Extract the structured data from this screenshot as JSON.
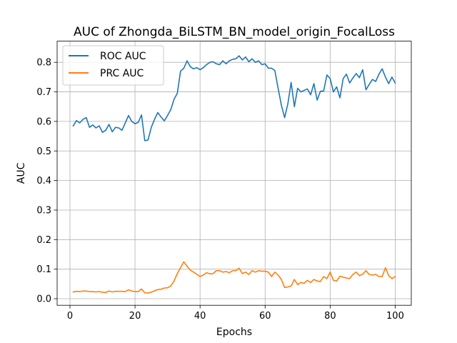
{
  "chart_data": {
    "type": "line",
    "title": "AUC of Zhongda_BiLSTM_BN_model_origin_FocalLoss",
    "xlabel": "Epochs",
    "ylabel": "AUC",
    "xlim": [
      -3.95,
      104.95
    ],
    "ylim": [
      -0.0222,
      0.8716
    ],
    "xticks": [
      0,
      20,
      40,
      60,
      80,
      100
    ],
    "xtick_labels": [
      "0",
      "20",
      "40",
      "60",
      "80",
      "100"
    ],
    "yticks": [
      0.0,
      0.1,
      0.2,
      0.3,
      0.4,
      0.5,
      0.6,
      0.7,
      0.8
    ],
    "ytick_labels": [
      "0.0",
      "0.1",
      "0.2",
      "0.3",
      "0.4",
      "0.5",
      "0.6",
      "0.7",
      "0.8"
    ],
    "grid": true,
    "legend": "upper left",
    "x": [
      1,
      2,
      3,
      4,
      5,
      6,
      7,
      8,
      9,
      10,
      11,
      12,
      13,
      14,
      15,
      16,
      17,
      18,
      19,
      20,
      21,
      22,
      23,
      24,
      25,
      26,
      27,
      28,
      29,
      30,
      31,
      32,
      33,
      34,
      35,
      36,
      37,
      38,
      39,
      40,
      41,
      42,
      43,
      44,
      45,
      46,
      47,
      48,
      49,
      50,
      51,
      52,
      53,
      54,
      55,
      56,
      57,
      58,
      59,
      60,
      61,
      62,
      63,
      64,
      65,
      66,
      67,
      68,
      69,
      70,
      71,
      72,
      73,
      74,
      75,
      76,
      77,
      78,
      79,
      80,
      81,
      82,
      83,
      84,
      85,
      86,
      87,
      88,
      89,
      90,
      91,
      92,
      93,
      94,
      95,
      96,
      97,
      98,
      99,
      100
    ],
    "series": [
      {
        "name": "ROC AUC",
        "color": "#1f77b4",
        "values": [
          0.585,
          0.603,
          0.595,
          0.607,
          0.613,
          0.58,
          0.588,
          0.578,
          0.585,
          0.563,
          0.57,
          0.59,
          0.565,
          0.58,
          0.578,
          0.57,
          0.595,
          0.62,
          0.6,
          0.592,
          0.597,
          0.622,
          0.535,
          0.537,
          0.58,
          0.607,
          0.63,
          0.615,
          0.602,
          0.62,
          0.64,
          0.675,
          0.695,
          0.77,
          0.78,
          0.805,
          0.785,
          0.778,
          0.782,
          0.775,
          0.782,
          0.792,
          0.8,
          0.802,
          0.795,
          0.792,
          0.805,
          0.795,
          0.805,
          0.81,
          0.812,
          0.822,
          0.808,
          0.818,
          0.802,
          0.812,
          0.8,
          0.805,
          0.792,
          0.795,
          0.78,
          0.78,
          0.772,
          0.712,
          0.655,
          0.613,
          0.66,
          0.732,
          0.65,
          0.712,
          0.7,
          0.705,
          0.71,
          0.69,
          0.728,
          0.672,
          0.702,
          0.703,
          0.757,
          0.745,
          0.7,
          0.717,
          0.68,
          0.745,
          0.76,
          0.73,
          0.747,
          0.762,
          0.748,
          0.775,
          0.707,
          0.725,
          0.742,
          0.735,
          0.76,
          0.778,
          0.75,
          0.728,
          0.75,
          0.73
        ]
      },
      {
        "name": "PRC AUC",
        "color": "#ff7f0e",
        "values": [
          0.023,
          0.025,
          0.024,
          0.026,
          0.026,
          0.024,
          0.024,
          0.023,
          0.024,
          0.022,
          0.021,
          0.026,
          0.023,
          0.025,
          0.025,
          0.025,
          0.024,
          0.03,
          0.026,
          0.024,
          0.024,
          0.033,
          0.02,
          0.019,
          0.022,
          0.027,
          0.031,
          0.032,
          0.036,
          0.037,
          0.043,
          0.06,
          0.085,
          0.105,
          0.125,
          0.11,
          0.097,
          0.09,
          0.083,
          0.075,
          0.08,
          0.088,
          0.084,
          0.085,
          0.095,
          0.095,
          0.09,
          0.092,
          0.088,
          0.095,
          0.095,
          0.103,
          0.085,
          0.09,
          0.082,
          0.095,
          0.09,
          0.095,
          0.093,
          0.093,
          0.09,
          0.075,
          0.09,
          0.08,
          0.065,
          0.038,
          0.04,
          0.043,
          0.065,
          0.048,
          0.055,
          0.052,
          0.062,
          0.055,
          0.065,
          0.06,
          0.058,
          0.075,
          0.068,
          0.09,
          0.062,
          0.06,
          0.076,
          0.073,
          0.07,
          0.068,
          0.082,
          0.09,
          0.078,
          0.083,
          0.095,
          0.082,
          0.08,
          0.082,
          0.075,
          0.075,
          0.105,
          0.078,
          0.068,
          0.075
        ]
      }
    ]
  }
}
